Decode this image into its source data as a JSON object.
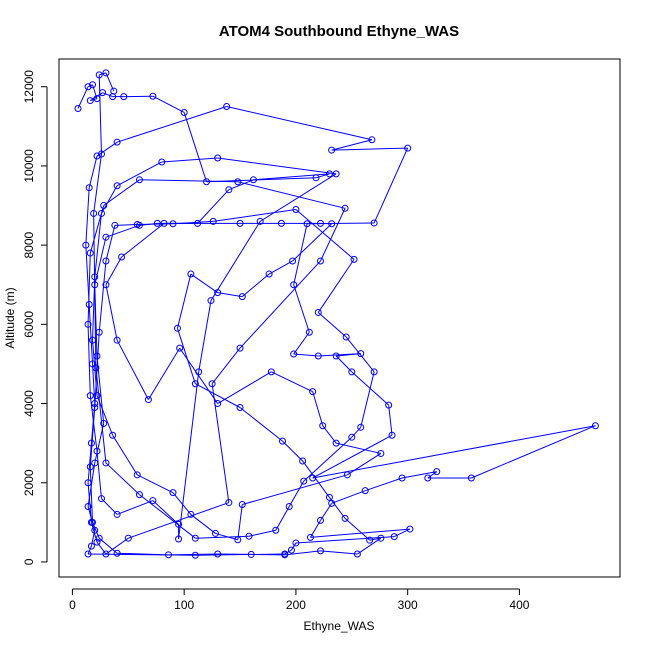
{
  "chart_data": {
    "type": "line",
    "title": "ATOM4 Southbound Ethyne_WAS",
    "xlabel": "Ethyne_WAS",
    "ylabel": "Altitude (m)",
    "xlim": [
      -12,
      490
    ],
    "ylim": [
      -380,
      12700
    ],
    "xticks": [
      0,
      100,
      200,
      300,
      400
    ],
    "yticks": [
      0,
      2000,
      4000,
      6000,
      8000,
      10000,
      12000
    ],
    "grid": false,
    "color": "#0000ff",
    "marker": "open-circle",
    "series": [
      {
        "values": [
          [
            5,
            11450
          ],
          [
            14,
            12000
          ],
          [
            18,
            12050
          ],
          [
            22,
            11700
          ],
          [
            16,
            11650
          ],
          [
            27,
            11850
          ],
          [
            36,
            11750
          ],
          [
            46,
            11750
          ],
          [
            72,
            11760
          ],
          [
            100,
            11350
          ],
          [
            120,
            9600
          ],
          [
            218,
            9700
          ],
          [
            230,
            9800
          ],
          [
            162,
            9650
          ],
          [
            140,
            9400
          ],
          [
            112,
            8550
          ],
          [
            76,
            8550
          ],
          [
            60,
            8500
          ],
          [
            30,
            8200
          ],
          [
            20,
            7000
          ],
          [
            22,
            5200
          ],
          [
            28,
            3500
          ],
          [
            20,
            2500
          ],
          [
            14,
            1400
          ],
          [
            20,
            800
          ],
          [
            17,
            400
          ],
          [
            14,
            200
          ],
          [
            110,
            170
          ],
          [
            190,
            200
          ],
          [
            196,
            300
          ],
          [
            200,
            480
          ],
          [
            288,
            640
          ],
          [
            302,
            830
          ],
          [
            213,
            620
          ],
          [
            222,
            1050
          ],
          [
            232,
            1480
          ],
          [
            262,
            1800
          ],
          [
            295,
            2120
          ],
          [
            326,
            2280
          ],
          [
            318,
            2120
          ],
          [
            357,
            2120
          ],
          [
            468,
            3440
          ],
          [
            215,
            2120
          ],
          [
            286,
            3200
          ],
          [
            283,
            3960
          ],
          [
            250,
            4800
          ],
          [
            236,
            5200
          ],
          [
            258,
            5260
          ],
          [
            220,
            5200
          ],
          [
            198,
            5250
          ],
          [
            212,
            5800
          ],
          [
            198,
            7000
          ],
          [
            210,
            8540
          ],
          [
            270,
            8560
          ],
          [
            300,
            10450
          ],
          [
            232,
            10400
          ],
          [
            268,
            10660
          ],
          [
            138,
            11500
          ],
          [
            40,
            10600
          ],
          [
            22,
            10250
          ],
          [
            15,
            9450
          ],
          [
            12,
            8000
          ],
          [
            15,
            6500
          ],
          [
            18,
            5000
          ],
          [
            20,
            4000
          ],
          [
            17,
            3000
          ],
          [
            14,
            2000
          ],
          [
            17,
            1000
          ],
          [
            22,
            500
          ],
          [
            30,
            200
          ],
          [
            50,
            600
          ],
          [
            140,
            1500
          ],
          [
            125,
            4500
          ],
          [
            150,
            5400
          ],
          [
            222,
            7600
          ],
          [
            244,
            8930
          ],
          [
            148,
            9600
          ],
          [
            60,
            9650
          ],
          [
            28,
            9000
          ],
          [
            16,
            7800
          ],
          [
            14,
            6000
          ],
          [
            16,
            4200
          ],
          [
            22,
            2800
          ],
          [
            26,
            1600
          ],
          [
            40,
            1200
          ],
          [
            72,
            1550
          ],
          [
            95,
            950
          ],
          [
            95,
            580
          ],
          [
            113,
            4800
          ],
          [
            124,
            6600
          ],
          [
            168,
            8600
          ],
          [
            236,
            9800
          ],
          [
            130,
            10200
          ],
          [
            80,
            10100
          ],
          [
            40,
            9500
          ],
          [
            26,
            8800
          ],
          [
            20,
            7200
          ],
          [
            18,
            5600
          ],
          [
            22,
            4200
          ],
          [
            36,
            3200
          ],
          [
            58,
            2200
          ],
          [
            90,
            1750
          ],
          [
            106,
            1200
          ],
          [
            128,
            720
          ],
          [
            148,
            560
          ],
          [
            152,
            1450
          ],
          [
            246,
            2200
          ],
          [
            276,
            2740
          ],
          [
            236,
            3000
          ],
          [
            224,
            3440
          ],
          [
            215,
            4300
          ],
          [
            178,
            4800
          ],
          [
            130,
            4000
          ],
          [
            96,
            5400
          ],
          [
            68,
            4100
          ],
          [
            40,
            5600
          ],
          [
            30,
            7000
          ],
          [
            44,
            7700
          ],
          [
            82,
            8550
          ],
          [
            150,
            8550
          ],
          [
            187,
            8550
          ],
          [
            222,
            8550
          ],
          [
            232,
            8540
          ],
          [
            197,
            7600
          ],
          [
            176,
            7270
          ],
          [
            152,
            6700
          ],
          [
            130,
            6800
          ],
          [
            106,
            7270
          ],
          [
            94,
            5900
          ],
          [
            110,
            4500
          ],
          [
            150,
            3900
          ],
          [
            188,
            3050
          ],
          [
            206,
            2550
          ],
          [
            230,
            1630
          ],
          [
            244,
            1100
          ],
          [
            266,
            550
          ],
          [
            276,
            600
          ],
          [
            255,
            200
          ],
          [
            222,
            280
          ],
          [
            190,
            180
          ],
          [
            160,
            190
          ],
          [
            130,
            200
          ],
          [
            86,
            180
          ],
          [
            40,
            220
          ],
          [
            24,
            600
          ],
          [
            18,
            1000
          ],
          [
            16,
            2400
          ],
          [
            20,
            3900
          ],
          [
            24,
            5800
          ],
          [
            30,
            7600
          ],
          [
            38,
            8500
          ],
          [
            58,
            8520
          ],
          [
            90,
            8540
          ],
          [
            126,
            8600
          ],
          [
            200,
            8900
          ],
          [
            252,
            7640
          ],
          [
            220,
            6300
          ],
          [
            245,
            5680
          ],
          [
            270,
            4800
          ],
          [
            258,
            3400
          ],
          [
            250,
            3150
          ],
          [
            207,
            2040
          ],
          [
            194,
            1400
          ],
          [
            182,
            800
          ],
          [
            158,
            650
          ],
          [
            110,
            600
          ],
          [
            60,
            1700
          ],
          [
            30,
            2500
          ],
          [
            21,
            4900
          ],
          [
            19,
            8800
          ],
          [
            26,
            10300
          ],
          [
            24,
            12300
          ],
          [
            30,
            12350
          ],
          [
            37,
            11890
          ]
        ]
      }
    ]
  }
}
